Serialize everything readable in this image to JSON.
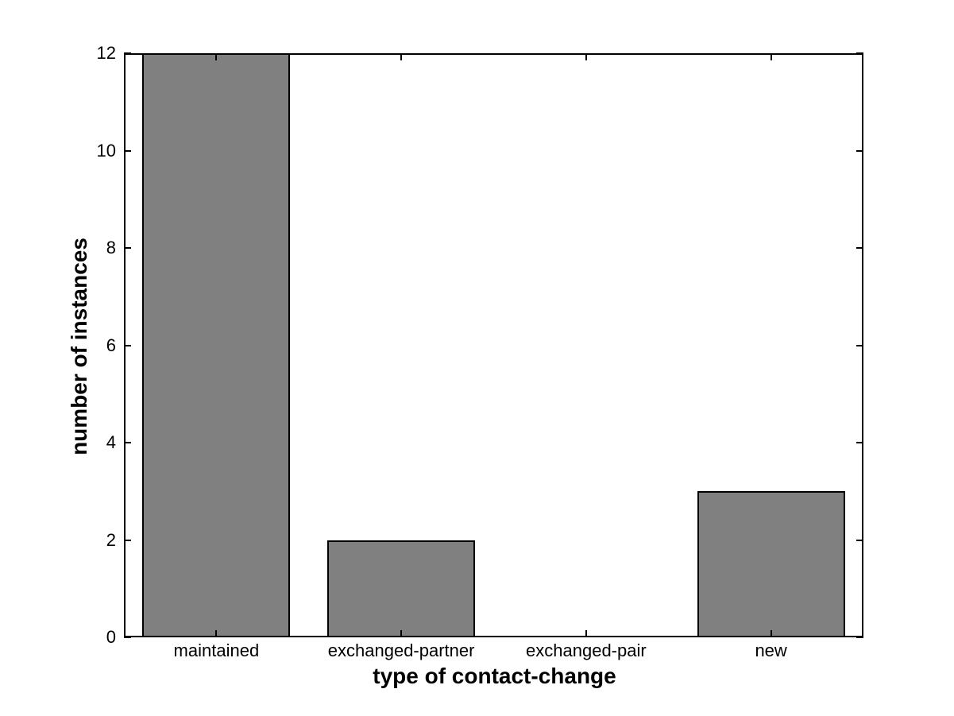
{
  "chart_data": {
    "type": "bar",
    "categories": [
      "maintained",
      "exchanged-partner",
      "exchanged-pair",
      "new"
    ],
    "values": [
      12,
      2,
      0,
      3
    ],
    "title": "",
    "xlabel": "type of contact-change",
    "ylabel": "number of instances",
    "ylim": [
      0,
      12
    ],
    "yticks": [
      0,
      2,
      4,
      6,
      8,
      10,
      12
    ],
    "ytick_labels": [
      "0",
      "2",
      "4",
      "6",
      "8",
      "10",
      "12"
    ],
    "grid": false,
    "legend_position": "none",
    "bar_width_fraction": 0.8,
    "colors": {
      "bar_fill": "#808080",
      "bar_edge": "#000000",
      "axis": "#000000",
      "text": "#000000",
      "background": "#ffffff"
    }
  }
}
